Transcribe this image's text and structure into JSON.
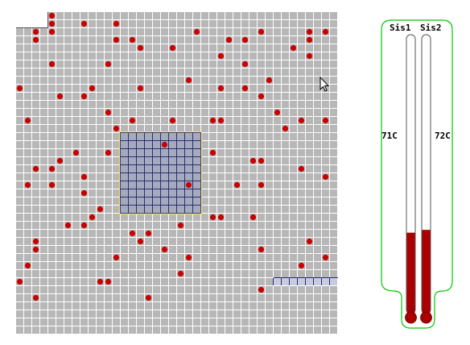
{
  "colors": {
    "background": "#ffffff",
    "cell": "#b7b7b7",
    "grid_line": "#ffffff",
    "mine": "#c80000",
    "selection_fill": "#a6aabe",
    "selection_grid": "#2a3070",
    "selection_border": "#f6e26a",
    "thermometer_outline": "#00c800",
    "tube_outline": "#555555",
    "mercury": "#aa0000"
  },
  "board": {
    "columns": 40,
    "rows": 40,
    "selection": {
      "col_start": 13,
      "row_start": 15,
      "col_end": 22,
      "row_end": 24
    },
    "partial_row": {
      "row": 33,
      "col_start": 32,
      "col_end": 39
    },
    "mines": [
      [
        4,
        0
      ],
      [
        4,
        1
      ],
      [
        8,
        1
      ],
      [
        12,
        1
      ],
      [
        2,
        2
      ],
      [
        4,
        2
      ],
      [
        22,
        2
      ],
      [
        30,
        2
      ],
      [
        36,
        2
      ],
      [
        38,
        2
      ],
      [
        2,
        3
      ],
      [
        12,
        3
      ],
      [
        14,
        3
      ],
      [
        26,
        3
      ],
      [
        28,
        3
      ],
      [
        36,
        3
      ],
      [
        15,
        4
      ],
      [
        19,
        4
      ],
      [
        34,
        4
      ],
      [
        25,
        5
      ],
      [
        36,
        5
      ],
      [
        4,
        6
      ],
      [
        11,
        6
      ],
      [
        28,
        6
      ],
      [
        21,
        8
      ],
      [
        31,
        8
      ],
      [
        0,
        9
      ],
      [
        9,
        9
      ],
      [
        15,
        9
      ],
      [
        25,
        9
      ],
      [
        28,
        9
      ],
      [
        5,
        10
      ],
      [
        8,
        10
      ],
      [
        30,
        10
      ],
      [
        11,
        12
      ],
      [
        32,
        12
      ],
      [
        1,
        13
      ],
      [
        14,
        13
      ],
      [
        19,
        13
      ],
      [
        24,
        13
      ],
      [
        25,
        13
      ],
      [
        35,
        13
      ],
      [
        38,
        13
      ],
      [
        12,
        14
      ],
      [
        33,
        14
      ],
      [
        18,
        16
      ],
      [
        7,
        17
      ],
      [
        11,
        17
      ],
      [
        24,
        17
      ],
      [
        5,
        18
      ],
      [
        29,
        18
      ],
      [
        30,
        18
      ],
      [
        2,
        19
      ],
      [
        4,
        19
      ],
      [
        35,
        19
      ],
      [
        8,
        20
      ],
      [
        38,
        20
      ],
      [
        1,
        21
      ],
      [
        4,
        21
      ],
      [
        21,
        21
      ],
      [
        27,
        21
      ],
      [
        30,
        21
      ],
      [
        8,
        22
      ],
      [
        10,
        24
      ],
      [
        9,
        25
      ],
      [
        24,
        25
      ],
      [
        25,
        25
      ],
      [
        29,
        25
      ],
      [
        6,
        26
      ],
      [
        8,
        26
      ],
      [
        20,
        26
      ],
      [
        14,
        27
      ],
      [
        16,
        27
      ],
      [
        2,
        28
      ],
      [
        15,
        28
      ],
      [
        36,
        28
      ],
      [
        2,
        29
      ],
      [
        18,
        29
      ],
      [
        30,
        29
      ],
      [
        12,
        30
      ],
      [
        21,
        30
      ],
      [
        38,
        30
      ],
      [
        1,
        31
      ],
      [
        35,
        31
      ],
      [
        20,
        32
      ],
      [
        0,
        33
      ],
      [
        10,
        33
      ],
      [
        11,
        33
      ],
      [
        30,
        34
      ],
      [
        2,
        35
      ],
      [
        16,
        35
      ]
    ]
  },
  "thermometers": [
    {
      "label": "Sis1",
      "temperature": "71C",
      "level_fraction": 0.29
    },
    {
      "label": "Sis2",
      "temperature": "72C",
      "level_fraction": 0.3
    }
  ],
  "cursor": "arrow-cursor-icon"
}
